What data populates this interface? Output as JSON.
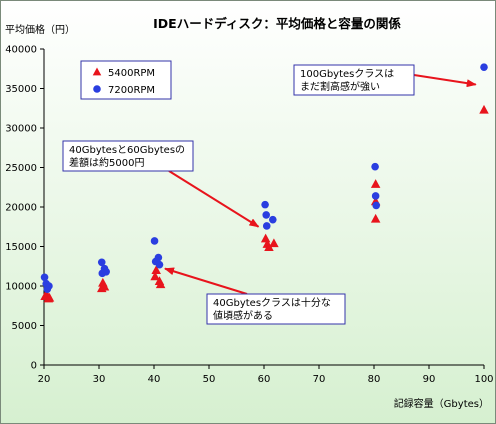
{
  "chart_data": {
    "type": "scatter",
    "title": "IDEハードディスク：平均価格と容量の関係",
    "ylabel": "平均価格（円）",
    "xlabel": "記録容量（Gbytes）",
    "xlim": [
      20,
      100
    ],
    "ylim": [
      0,
      40000
    ],
    "xticks": [
      "20",
      "30",
      "40",
      "50",
      "60",
      "70",
      "80",
      "90",
      "100"
    ],
    "yticks": [
      "0",
      "5000",
      "10000",
      "15000",
      "20000",
      "25000",
      "30000",
      "35000",
      "40000"
    ],
    "grid": false,
    "legend_position": "top-left",
    "series": [
      {
        "name": "5400RPM",
        "marker": "triangle",
        "color": "#e8141c",
        "points": [
          [
            20.2,
            8700
          ],
          [
            20.5,
            8900
          ],
          [
            20.8,
            8400
          ],
          [
            21.0,
            8500
          ],
          [
            30.5,
            9700
          ],
          [
            30.7,
            10400
          ],
          [
            31.0,
            9900
          ],
          [
            40.2,
            11200
          ],
          [
            40.4,
            12000
          ],
          [
            41.0,
            10600
          ],
          [
            41.2,
            10200
          ],
          [
            60.3,
            16000
          ],
          [
            60.6,
            15300
          ],
          [
            60.9,
            14900
          ],
          [
            61.8,
            15400
          ],
          [
            80.3,
            22900
          ],
          [
            80.3,
            20700
          ],
          [
            80.3,
            18500
          ],
          [
            100,
            32300
          ]
        ]
      },
      {
        "name": "7200RPM",
        "marker": "circle",
        "color": "#2a3ee0",
        "points": [
          [
            20.1,
            11100
          ],
          [
            20.4,
            10300
          ],
          [
            20.6,
            9600
          ],
          [
            20.9,
            10000
          ],
          [
            30.5,
            13000
          ],
          [
            30.6,
            11600
          ],
          [
            31.0,
            12200
          ],
          [
            31.3,
            11800
          ],
          [
            40.1,
            15700
          ],
          [
            40.3,
            13100
          ],
          [
            40.8,
            13600
          ],
          [
            41.0,
            12700
          ],
          [
            60.2,
            20300
          ],
          [
            60.4,
            19000
          ],
          [
            60.5,
            17600
          ],
          [
            61.6,
            18400
          ],
          [
            80.2,
            25100
          ],
          [
            80.3,
            21400
          ],
          [
            80.4,
            20200
          ],
          [
            100,
            37700
          ]
        ]
      }
    ],
    "annotations": [
      {
        "lines": [
          "100Gbytesクラスは",
          "まだ割高感が強い"
        ],
        "target": [
          98.5,
          35500
        ]
      },
      {
        "lines": [
          "40Gbytesと60Gbytesの",
          "差額は約5000円"
        ],
        "target": [
          59,
          17500
        ]
      },
      {
        "lines": [
          "40Gbytesクラスは十分な",
          "値頃感がある"
        ],
        "target": [
          42,
          12200
        ]
      }
    ]
  }
}
